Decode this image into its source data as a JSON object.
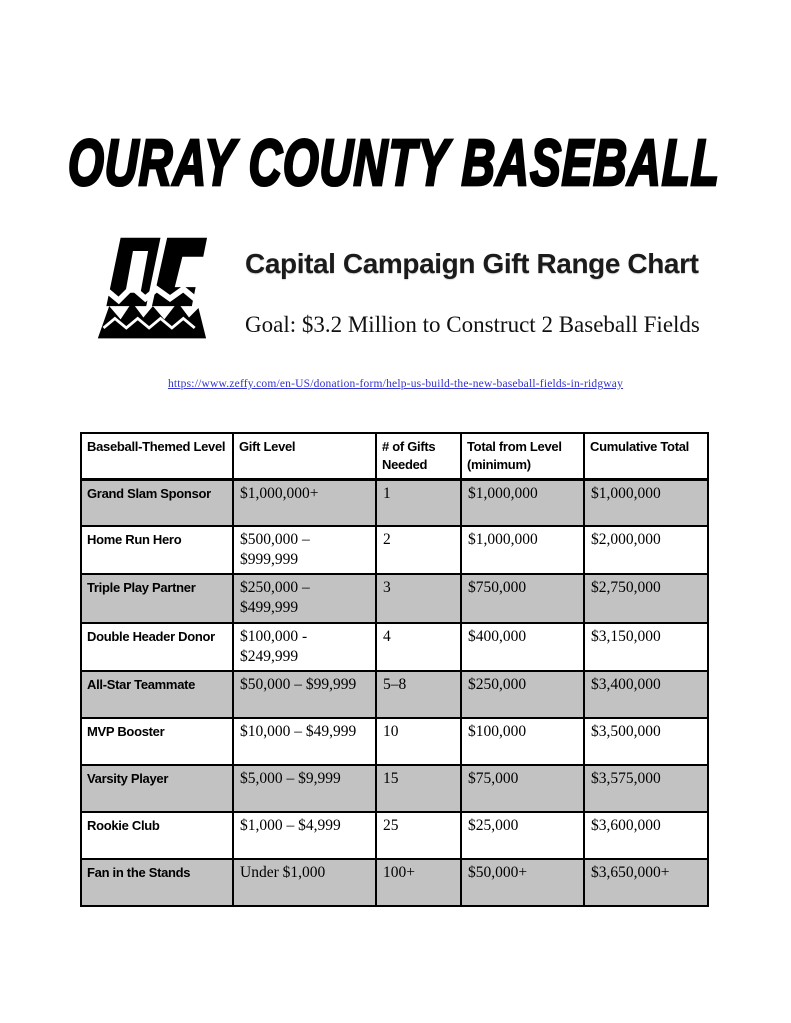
{
  "page": {
    "title": "OURAY COUNTY BASEBALL",
    "logo_name": "oc-mountains-logo",
    "heading": "Capital Campaign Gift Range Chart",
    "subheading": "Goal: $3.2 Million to Construct 2 Baseball Fields",
    "link": "https://www.zeffy.com/en-US/donation-form/help-us-build-the-new-baseball-fields-in-ridgway"
  },
  "colors": {
    "row_shade": "#c2c2c2",
    "link_blue": "#3333cc",
    "text": "#000000",
    "page_background": "#ffffff"
  },
  "table": {
    "columns": [
      "Baseball-Themed Level",
      "Gift Level",
      "# of Gifts Needed",
      "Total from Level (minimum)",
      "Cumulative Total"
    ],
    "rows": [
      {
        "level": "Grand Slam Sponsor",
        "gift": "$1,000,000+",
        "gifts_needed": "1",
        "total": "$1,000,000",
        "cumulative": "$1,000,000",
        "shaded": true
      },
      {
        "level": "Home Run Hero",
        "gift": "$500,000 – $999,999",
        "gifts_needed": "2",
        "total": "$1,000,000",
        "cumulative": "$2,000,000",
        "shaded": false
      },
      {
        "level": "Triple Play Partner",
        "gift": "$250,000 – $499,999",
        "gifts_needed": "3",
        "total": "$750,000",
        "cumulative": "$2,750,000",
        "shaded": true
      },
      {
        "level": "Double Header Donor",
        "gift": "$100,000 - $249,999",
        "gifts_needed": "4",
        "total": "$400,000",
        "cumulative": "$3,150,000",
        "shaded": false
      },
      {
        "level": "All-Star Teammate",
        "gift": "$50,000 – $99,999",
        "gifts_needed": "5–8",
        "total": "$250,000",
        "cumulative": "$3,400,000",
        "shaded": true
      },
      {
        "level": "MVP Booster",
        "gift": "$10,000 – $49,999",
        "gifts_needed": "10",
        "total": "$100,000",
        "cumulative": "$3,500,000",
        "shaded": false
      },
      {
        "level": "Varsity Player",
        "gift": "$5,000 – $9,999",
        "gifts_needed": "15",
        "total": "$75,000",
        "cumulative": "$3,575,000",
        "shaded": true
      },
      {
        "level": "Rookie Club",
        "gift": "$1,000 – $4,999",
        "gifts_needed": "25",
        "total": "$25,000",
        "cumulative": "$3,600,000",
        "shaded": false
      },
      {
        "level": "Fan in the Stands",
        "gift": "Under $1,000",
        "gifts_needed": "100+",
        "total": "$50,000+",
        "cumulative": "$3,650,000+",
        "shaded": true
      }
    ]
  }
}
